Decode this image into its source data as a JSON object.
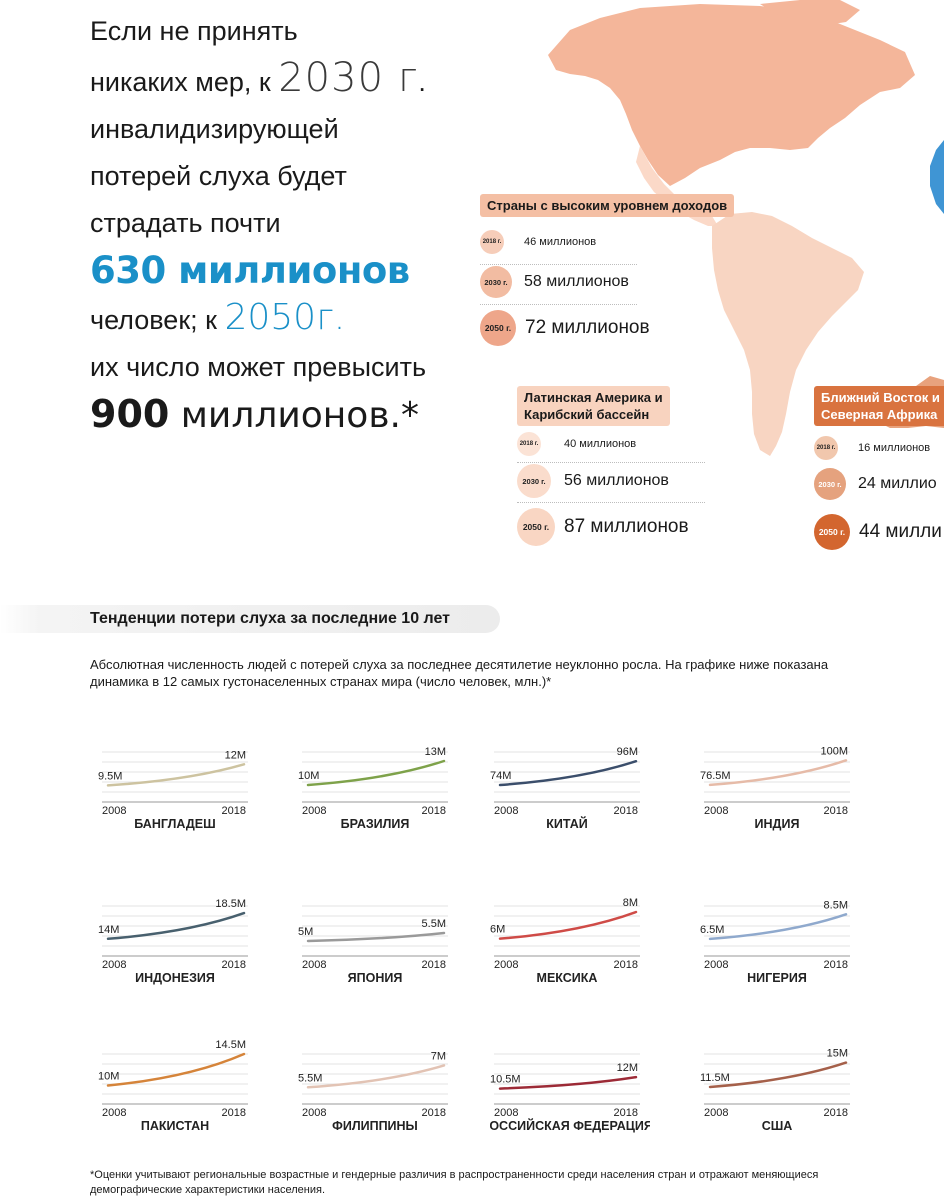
{
  "headline": {
    "line1": "Если не принять",
    "line2_a": "никаких мер, к ",
    "line2_year": "2030 г",
    "line2_dot": ".",
    "line3": "инвалидизирующей",
    "line4": "потерей слуха будет",
    "line5": "страдать почти",
    "line6": "630 миллионов",
    "line7_a": "человек; к ",
    "line7_year": "2050г.",
    "line8": "их число может превысить",
    "line9_num": "900",
    "line9_rest": " миллионов.*"
  },
  "regions": [
    {
      "title": "Страны с высоким уровнем доходов",
      "color": "#f4bfa4",
      "rows": [
        {
          "year": "2018 г.",
          "value": "46 миллионов"
        },
        {
          "year": "2030 г.",
          "value": "58 миллионов"
        },
        {
          "year": "2050 г.",
          "value": "72 миллионов"
        }
      ]
    },
    {
      "title_line1": "Латинская Америка и",
      "title_line2": "Карибский бассейн",
      "color": "#f8d3bf",
      "rows": [
        {
          "year": "2018 г.",
          "value": "40 миллионов"
        },
        {
          "year": "2030 г.",
          "value": "56 миллионов"
        },
        {
          "year": "2050 г.",
          "value": "87 миллионов"
        }
      ]
    },
    {
      "title_line1": "Ближний Восток и",
      "title_line2": "Северная Африка",
      "color": "#d9733f",
      "rows": [
        {
          "year": "2018 г.",
          "value": "16 миллионов"
        },
        {
          "year": "2030 г.",
          "value": "24 миллио"
        },
        {
          "year": "2050 г.",
          "value": "44 милли"
        }
      ]
    }
  ],
  "section": {
    "title": "Тенденции потери слуха за последние 10 лет",
    "intro": "Абсолютная численность людей с потерей слуха за последнее десятилетие неуклонно росла. На графике ниже показана динамика в 12 самых густонаселенных странах мира (число человек, млн.)*"
  },
  "chart_data": {
    "type": "line",
    "x": [
      2008,
      2018
    ],
    "xlabels": [
      "2008",
      "2018"
    ],
    "panels": [
      {
        "country": "БАНГЛАДЕШ",
        "start": 9.5,
        "end": 12,
        "start_label": "9.5M",
        "end_label": "12M",
        "color": "#cdc3a0"
      },
      {
        "country": "БРАЗИЛИЯ",
        "start": 10,
        "end": 13,
        "start_label": "10M",
        "end_label": "13M",
        "color": "#7ea24a"
      },
      {
        "country": "КИТАЙ",
        "start": 74,
        "end": 96,
        "start_label": "74M",
        "end_label": "96M",
        "color": "#3b4e6b"
      },
      {
        "country": "ИНДИЯ",
        "start": 76.5,
        "end": 100,
        "start_label": "76.5M",
        "end_label": "100M",
        "color": "#e6bba8"
      },
      {
        "country": "ИНДОНЕЗИЯ",
        "start": 14,
        "end": 18.5,
        "start_label": "14M",
        "end_label": "18.5M",
        "color": "#48606e"
      },
      {
        "country": "ЯПОНИЯ",
        "start": 5,
        "end": 5.5,
        "start_label": "5M",
        "end_label": "5.5M",
        "color": "#9a9a9a"
      },
      {
        "country": "МЕКСИКА",
        "start": 6,
        "end": 8,
        "start_label": "6M",
        "end_label": "8M",
        "color": "#cf4b47"
      },
      {
        "country": "НИГЕРИЯ",
        "start": 6.5,
        "end": 8.5,
        "start_label": "6.5M",
        "end_label": "8.5M",
        "color": "#8fa9cd"
      },
      {
        "country": "ПАКИСТАН",
        "start": 10,
        "end": 14.5,
        "start_label": "10M",
        "end_label": "14.5M",
        "color": "#d5843a"
      },
      {
        "country": "ФИЛИППИНЫ",
        "start": 5.5,
        "end": 7,
        "start_label": "5.5M",
        "end_label": "7M",
        "color": "#e2c3b4"
      },
      {
        "country": "РОССИЙСКАЯ ФЕДЕРАЦИЯ",
        "start": 10.5,
        "end": 12,
        "start_label": "10.5M",
        "end_label": "12M",
        "color": "#9c2a36"
      },
      {
        "country": "США",
        "start": 11.5,
        "end": 15,
        "start_label": "11.5M",
        "end_label": "15M",
        "color": "#a5604a"
      }
    ]
  },
  "footnote": "*Оценки учитывают региональные возрастные и гендерные различия в распространенности среди населения стран и отражают меняющиеся демографические характеристики населения.",
  "colors": {
    "accent_blue": "#1a90c8",
    "map_north_america": "#f4b69a",
    "map_central_america": "#fbd9c8",
    "map_south_america": "#f8d5c2",
    "map_africa": "#e8a27d"
  }
}
